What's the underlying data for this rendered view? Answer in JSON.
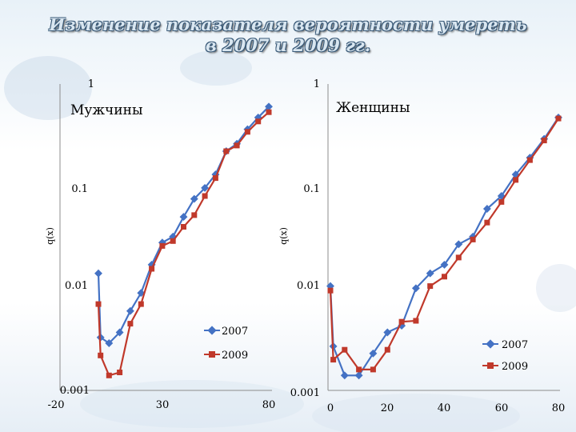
{
  "title_line1": "Изменение показателя вероятности умереть",
  "title_line2": "в 2007 и 2009 гг.",
  "colors": {
    "s2007": "#4472c4",
    "s2009": "#c0392b",
    "axis": "#8c8c8c"
  },
  "chart_data": [
    {
      "type": "line",
      "panel_label": "Мужчины",
      "ylabel": "q(x)",
      "yscale": "log",
      "ylim": [
        0.001,
        1
      ],
      "ytick_labels": [
        "0.001",
        "0.01",
        "0.1",
        "1"
      ],
      "xlim": [
        -20,
        80
      ],
      "xtick_labels": [
        "-20",
        "30",
        "80"
      ],
      "legend": {
        "position": "bottom-right",
        "entries": [
          "2007",
          "2009"
        ]
      },
      "series": [
        {
          "name": "2007",
          "points": [
            [
              0,
              0.014
            ],
            [
              1,
              0.0033
            ],
            [
              5,
              0.0029
            ],
            [
              10,
              0.0037
            ],
            [
              15,
              0.006
            ],
            [
              20,
              0.009
            ],
            [
              25,
              0.017
            ],
            [
              30,
              0.028
            ],
            [
              35,
              0.032
            ],
            [
              40,
              0.05
            ],
            [
              45,
              0.075
            ],
            [
              50,
              0.096
            ],
            [
              55,
              0.13
            ],
            [
              60,
              0.22
            ],
            [
              65,
              0.26
            ],
            [
              70,
              0.36
            ],
            [
              75,
              0.47
            ],
            [
              80,
              0.6
            ]
          ]
        },
        {
          "name": "2009",
          "points": [
            [
              0,
              0.007
            ],
            [
              1,
              0.0022
            ],
            [
              5,
              0.0014
            ],
            [
              10,
              0.0015
            ],
            [
              15,
              0.0045
            ],
            [
              20,
              0.007
            ],
            [
              25,
              0.0155
            ],
            [
              30,
              0.026
            ],
            [
              35,
              0.029
            ],
            [
              40,
              0.04
            ],
            [
              45,
              0.052
            ],
            [
              50,
              0.08
            ],
            [
              55,
              0.12
            ],
            [
              60,
              0.22
            ],
            [
              65,
              0.25
            ],
            [
              70,
              0.34
            ],
            [
              75,
              0.43
            ],
            [
              80,
              0.53
            ]
          ]
        }
      ]
    },
    {
      "type": "line",
      "panel_label": "Женщины",
      "ylabel": "q(x)",
      "yscale": "log",
      "ylim": [
        0.001,
        1
      ],
      "ytick_labels": [
        "0.001",
        "0.01",
        "0.1",
        "1"
      ],
      "xlim": [
        0,
        80
      ],
      "xtick_labels": [
        "0",
        "20",
        "40",
        "60",
        "80"
      ],
      "legend": {
        "position": "bottom-right",
        "entries": [
          "2007",
          "2009"
        ]
      },
      "series": [
        {
          "name": "2007",
          "points": [
            [
              0,
              0.0105
            ],
            [
              1,
              0.0027
            ],
            [
              5,
              0.0014
            ],
            [
              10,
              0.0014
            ],
            [
              15,
              0.0023
            ],
            [
              20,
              0.0037
            ],
            [
              25,
              0.0043
            ],
            [
              30,
              0.01
            ],
            [
              35,
              0.014
            ],
            [
              40,
              0.017
            ],
            [
              45,
              0.027
            ],
            [
              50,
              0.032
            ],
            [
              55,
              0.06
            ],
            [
              60,
              0.08
            ],
            [
              65,
              0.13
            ],
            [
              70,
              0.19
            ],
            [
              75,
              0.29
            ],
            [
              80,
              0.47
            ]
          ]
        },
        {
          "name": "2009",
          "points": [
            [
              0,
              0.0095
            ],
            [
              1,
              0.002
            ],
            [
              5,
              0.0025
            ],
            [
              10,
              0.0016
            ],
            [
              15,
              0.0016
            ],
            [
              20,
              0.0025
            ],
            [
              25,
              0.0047
            ],
            [
              30,
              0.0048
            ],
            [
              35,
              0.0105
            ],
            [
              40,
              0.013
            ],
            [
              45,
              0.02
            ],
            [
              50,
              0.03
            ],
            [
              55,
              0.044
            ],
            [
              60,
              0.07
            ],
            [
              65,
              0.115
            ],
            [
              70,
              0.18
            ],
            [
              75,
              0.28
            ],
            [
              80,
              0.46
            ]
          ]
        }
      ]
    }
  ]
}
